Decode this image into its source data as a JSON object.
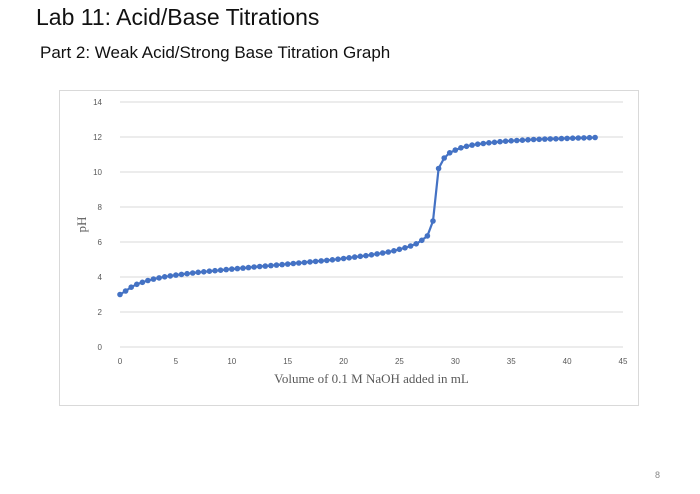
{
  "slide": {
    "title": "Lab 11: Acid/Base Titrations",
    "subtitle": "Part 2: Weak Acid/Strong Base Titration Graph",
    "page_number": "8"
  },
  "colors": {
    "series": "#4472C4",
    "grid": "#d9d9d9",
    "axis_text": "#595959"
  },
  "chart_data": {
    "type": "scatter",
    "title": "",
    "xlabel": "Volume of 0.1 M NaOH added in mL",
    "ylabel": "pH",
    "xlim": [
      0,
      45
    ],
    "ylim": [
      0,
      14
    ],
    "x_ticks": [
      "0",
      "5",
      "10",
      "15",
      "20",
      "25",
      "30",
      "35",
      "40",
      "45"
    ],
    "y_ticks": [
      "0",
      "2",
      "4",
      "6",
      "8",
      "10",
      "12",
      "14"
    ],
    "grid": "horizontal",
    "legend": "none",
    "series": [
      {
        "marker": "circle",
        "line": true,
        "x": [
          0,
          0.5,
          1,
          1.5,
          2,
          2.5,
          3,
          3.5,
          4,
          4.5,
          5,
          5.5,
          6,
          6.5,
          7,
          7.5,
          8,
          8.5,
          9,
          9.5,
          10,
          10.5,
          11,
          11.5,
          12,
          12.5,
          13,
          13.5,
          14,
          14.5,
          15,
          15.5,
          16,
          16.5,
          17,
          17.5,
          18,
          18.5,
          19,
          19.5,
          20,
          20.5,
          21,
          21.5,
          22,
          22.5,
          23,
          23.5,
          24,
          24.5,
          25,
          25.5,
          26,
          26.5,
          27,
          27.5,
          28,
          28.5,
          29,
          29.5,
          30,
          30.5,
          31,
          31.5,
          32,
          32.5,
          33,
          33.5,
          34,
          34.5,
          35,
          35.5,
          36,
          36.5,
          37,
          37.5,
          38,
          38.5,
          39,
          39.5,
          40,
          40.5,
          41,
          41.5,
          42,
          42.5
        ],
        "y": [
          3.0,
          3.2,
          3.42,
          3.58,
          3.7,
          3.8,
          3.88,
          3.95,
          4.01,
          4.06,
          4.11,
          4.15,
          4.19,
          4.23,
          4.27,
          4.3,
          4.33,
          4.36,
          4.39,
          4.42,
          4.45,
          4.48,
          4.51,
          4.54,
          4.57,
          4.6,
          4.62,
          4.65,
          4.68,
          4.71,
          4.74,
          4.77,
          4.8,
          4.83,
          4.86,
          4.89,
          4.92,
          4.95,
          4.98,
          5.02,
          5.06,
          5.1,
          5.14,
          5.18,
          5.22,
          5.27,
          5.32,
          5.37,
          5.43,
          5.5,
          5.58,
          5.67,
          5.77,
          5.9,
          6.1,
          6.35,
          7.2,
          10.2,
          10.8,
          11.1,
          11.25,
          11.38,
          11.47,
          11.54,
          11.59,
          11.63,
          11.67,
          11.7,
          11.73,
          11.76,
          11.78,
          11.8,
          11.82,
          11.84,
          11.86,
          11.87,
          11.88,
          11.89,
          11.9,
          11.91,
          11.92,
          11.93,
          11.94,
          11.95,
          11.96,
          11.97
        ]
      }
    ]
  }
}
